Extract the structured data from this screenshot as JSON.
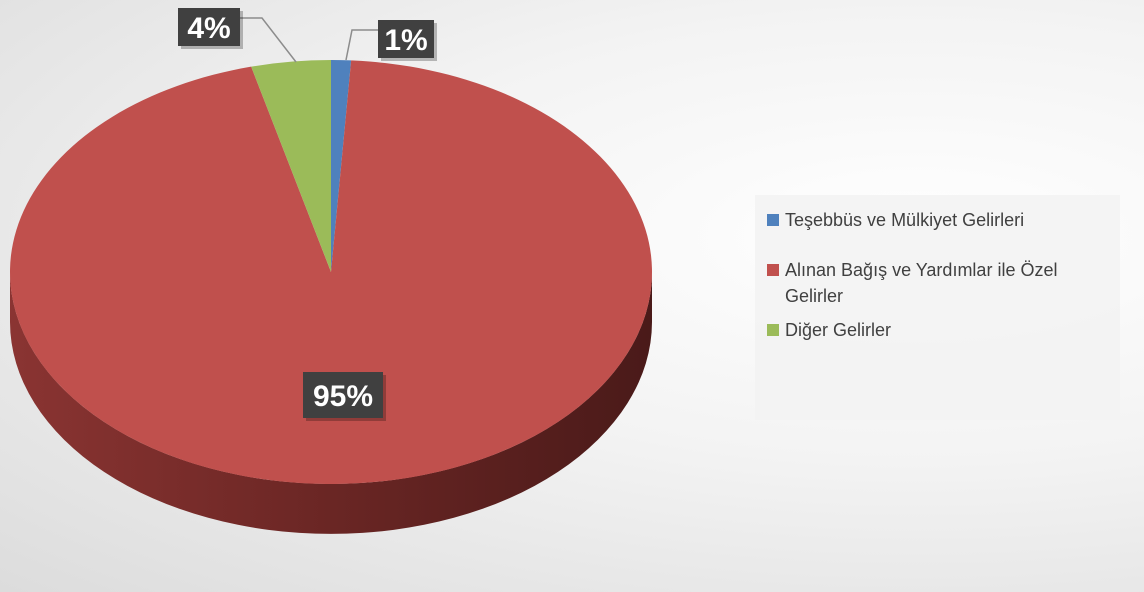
{
  "chart_data": {
    "type": "pie",
    "categories": [
      "Teşebbüs ve Mülkiyet Gelirleri",
      "Alınan Bağış ve Yardımlar ile Özel Gelirler",
      "Diğer Gelirler"
    ],
    "values": [
      1,
      95,
      4
    ],
    "value_labels": [
      "1%",
      "95%",
      "4%"
    ],
    "colors": [
      "#4f81bd",
      "#c0504d",
      "#9bbb59"
    ],
    "legend": "right"
  }
}
